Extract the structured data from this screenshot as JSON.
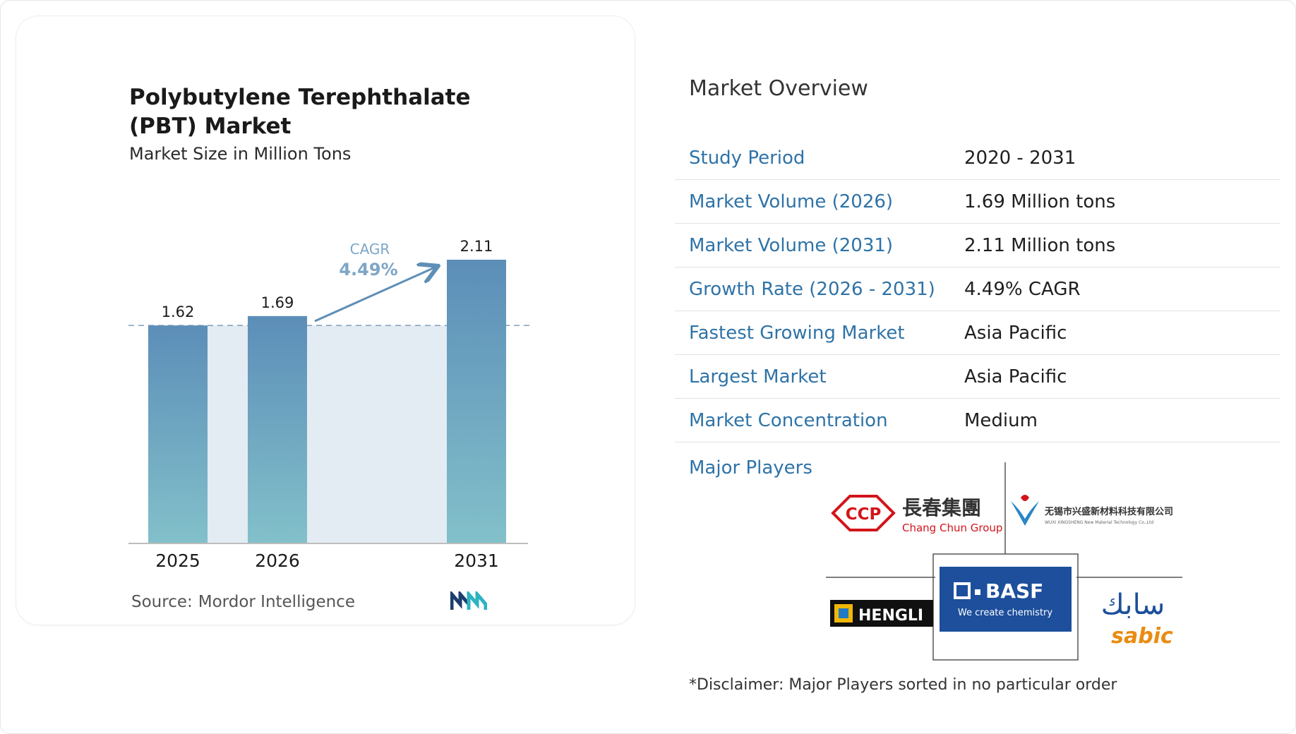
{
  "chart_data": {
    "type": "bar",
    "title": "Polybutylene Terephthalate (PBT) Market",
    "subtitle": "Market Size in Million Tons",
    "categories": [
      "2025",
      "2026",
      "2031"
    ],
    "values": [
      1.62,
      1.69,
      2.11
    ],
    "value_labels": [
      "1.62",
      "1.69",
      "2.11"
    ],
    "ylim": [
      0,
      2.11
    ],
    "cagr": {
      "label": "CAGR",
      "value": "4.49%"
    },
    "legend": "none",
    "grid": false
  },
  "source": {
    "label": "Source:",
    "value": "Mordor Intelligence"
  },
  "overview": {
    "title": "Market Overview",
    "rows": [
      {
        "label": "Study Period",
        "value": "2020 - 2031"
      },
      {
        "label": "Market Volume (2026)",
        "value": "1.69 Million tons"
      },
      {
        "label": "Market Volume (2031)",
        "value": "2.11 Million tons"
      },
      {
        "label": "Growth Rate (2026 - 2031)",
        "value": "4.49% CAGR"
      },
      {
        "label": "Fastest Growing Market",
        "value": "Asia Pacific"
      },
      {
        "label": "Largest Market",
        "value": "Asia Pacific"
      },
      {
        "label": "Market Concentration",
        "value": "Medium"
      }
    ]
  },
  "players": {
    "title": "Major Players",
    "logos": {
      "ccp": {
        "mark": "CCP",
        "name_cn": "長春集團",
        "name_en": "Chang Chun Group"
      },
      "wuxi": {
        "name_cn": "无锡市兴盛新材料科技有限公司",
        "name_en": "WUXI XINGSHENG New Material Technology Co.,Ltd"
      },
      "hengli": {
        "name": "HENGLI"
      },
      "basf": {
        "name": "BASF",
        "tagline": "We create chemistry"
      },
      "sabic": {
        "name_ar": "سابك",
        "name": "sabic"
      }
    },
    "colors": {
      "basf_blue": "#1d4f9c",
      "sabic_orange": "#e98c10",
      "ccp_red": "#d3141b"
    }
  },
  "disclaimer": "*Disclaimer: Major Players sorted in no particular order",
  "colors": {
    "bar_top": "#5c8eb8",
    "bar_bottom": "#82c0ca",
    "label_blue": "#2f73a7",
    "band": "#e3ebf3"
  }
}
